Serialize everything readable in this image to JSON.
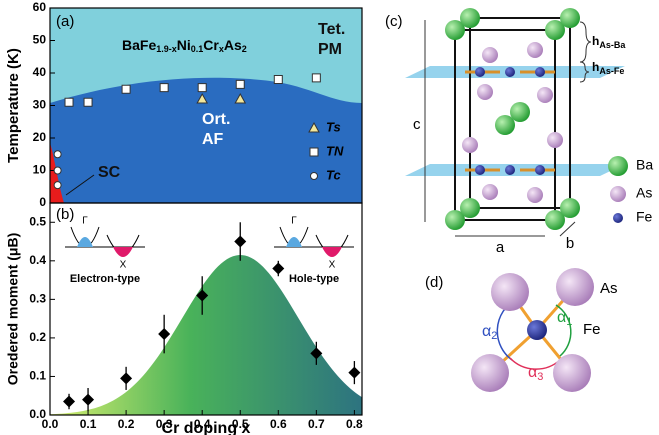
{
  "chart_data": [
    {
      "type": "scatter",
      "label": "(a)",
      "formula": [
        {
          "text": "BaFe"
        },
        {
          "text": "1.9-x",
          "sub": true
        },
        {
          "text": "Ni"
        },
        {
          "text": "0.1",
          "sub": true
        },
        {
          "text": "Cr"
        },
        {
          "text": "x",
          "sub": true
        },
        {
          "text": "As"
        },
        {
          "text": "2",
          "sub": true
        }
      ],
      "ylabel": "Temperature (K)",
      "ylim": [
        0,
        60
      ],
      "yticks": [
        0,
        10,
        20,
        30,
        40,
        50,
        60
      ],
      "xlim": [
        0,
        0.82
      ],
      "annotations": [
        "Tet.",
        "PM",
        "Ort.",
        "AF",
        "SC"
      ],
      "series": [
        {
          "name": "Ts",
          "marker": "triangle",
          "color": "#f3e79b",
          "x": [
            0.4,
            0.5
          ],
          "values": [
            32,
            32
          ]
        },
        {
          "name": "TN",
          "marker": "square",
          "color": "#ffffff",
          "x": [
            0.05,
            0.1,
            0.2,
            0.3,
            0.4,
            0.5,
            0.6,
            0.7
          ],
          "values": [
            31,
            31,
            35,
            35.5,
            35.5,
            36.5,
            38,
            38.5
          ]
        },
        {
          "name": "Tc",
          "marker": "circle",
          "color": "#ffffff",
          "x": [
            0.02,
            0.02,
            0.02
          ],
          "values": [
            15,
            10,
            5.5
          ]
        }
      ]
    },
    {
      "type": "errorbar",
      "label": "(b)",
      "ylabel": "Oredered moment (μB)",
      "xlabel": "Cr doping x",
      "xlim": [
        0,
        0.82
      ],
      "xticks": [
        {
          "value": 0,
          "label": "0.0"
        },
        0.1,
        0.2,
        0.3,
        0.4,
        0.5,
        0.6,
        0.7,
        0.8
      ],
      "ylim": [
        0,
        0.55
      ],
      "yticks": [
        {
          "value": 0,
          "label": "0.0"
        },
        0.1,
        0.2,
        0.3,
        0.4,
        0.5
      ],
      "insets": [
        {
          "label": "Electron-type",
          "points": [
            "Γ",
            "X"
          ]
        },
        {
          "label": "Hole-type",
          "points": [
            "Γ",
            "X"
          ]
        }
      ],
      "series": [
        {
          "color": "#000000",
          "x": [
            0.05,
            0.1,
            0.2,
            0.3,
            0.4,
            0.5,
            0.6,
            0.7,
            0.8
          ],
          "values": [
            0.035,
            0.04,
            0.095,
            0.21,
            0.31,
            0.45,
            0.38,
            0.16,
            0.11
          ],
          "errors": [
            0.02,
            0.03,
            0.03,
            0.05,
            0.05,
            0.05,
            0.02,
            0.03,
            0.03
          ]
        }
      ]
    }
  ],
  "crystal": {
    "label": "(c)",
    "axes": [
      "c",
      "a",
      "b"
    ],
    "heights": [
      {
        "main": "h",
        "sub": "As-Ba"
      },
      {
        "main": "h",
        "sub": "As-Fe"
      }
    ],
    "legend": [
      "Ba",
      "As",
      "Fe"
    ]
  },
  "bonds": {
    "label": "(d)",
    "atoms": [
      "As",
      "Fe"
    ],
    "angles": [
      {
        "main": "α",
        "sub": "1"
      },
      {
        "main": "α",
        "sub": "2"
      },
      {
        "main": "α",
        "sub": "3"
      }
    ]
  }
}
